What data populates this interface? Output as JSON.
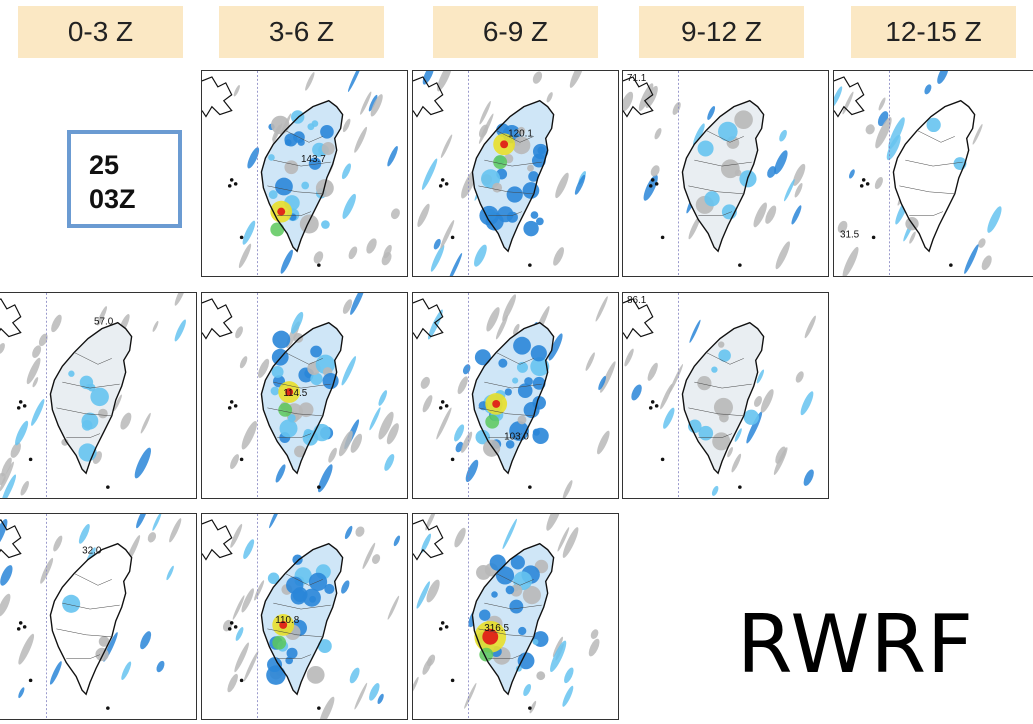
{
  "columns": [
    {
      "label": "0-3 Z"
    },
    {
      "label": "3-6 Z"
    },
    {
      "label": "6-9 Z"
    },
    {
      "label": "9-12 Z"
    },
    {
      "label": "12-15 Z"
    }
  ],
  "init_time": {
    "day": "25",
    "hour": "03Z"
  },
  "model": "RWRF",
  "colors": {
    "header_bg": "#fbe8c4",
    "init_border": "#6b9bd2",
    "rain_light": "#66c3f0",
    "rain_mid": "#2a86d8",
    "rain_heavy": "#e8df2a",
    "rain_max": "#e02a1a",
    "trace": "#b8b8b8"
  },
  "panels": [
    {
      "id": "r1c2",
      "max_label": "143.7",
      "intensity": "high"
    },
    {
      "id": "r1c3",
      "max_label": "120.1",
      "intensity": "high"
    },
    {
      "id": "r1c4",
      "max_label": "71.1",
      "intensity": "low"
    },
    {
      "id": "r1c5",
      "max_label": "31.5",
      "intensity": "none"
    },
    {
      "id": "r2c1",
      "max_label": "57.0",
      "intensity": "low"
    },
    {
      "id": "r2c2",
      "max_label": "114.5",
      "intensity": "high"
    },
    {
      "id": "r2c3",
      "max_label": "103.0",
      "intensity": "high"
    },
    {
      "id": "r2c4",
      "max_label": "86.1",
      "intensity": "low"
    },
    {
      "id": "r3c1",
      "max_label": "32.0",
      "intensity": "none"
    },
    {
      "id": "r3c2",
      "max_label": "110.8",
      "intensity": "high"
    },
    {
      "id": "r3c3",
      "max_label": "316.5",
      "intensity": "extreme"
    }
  ]
}
